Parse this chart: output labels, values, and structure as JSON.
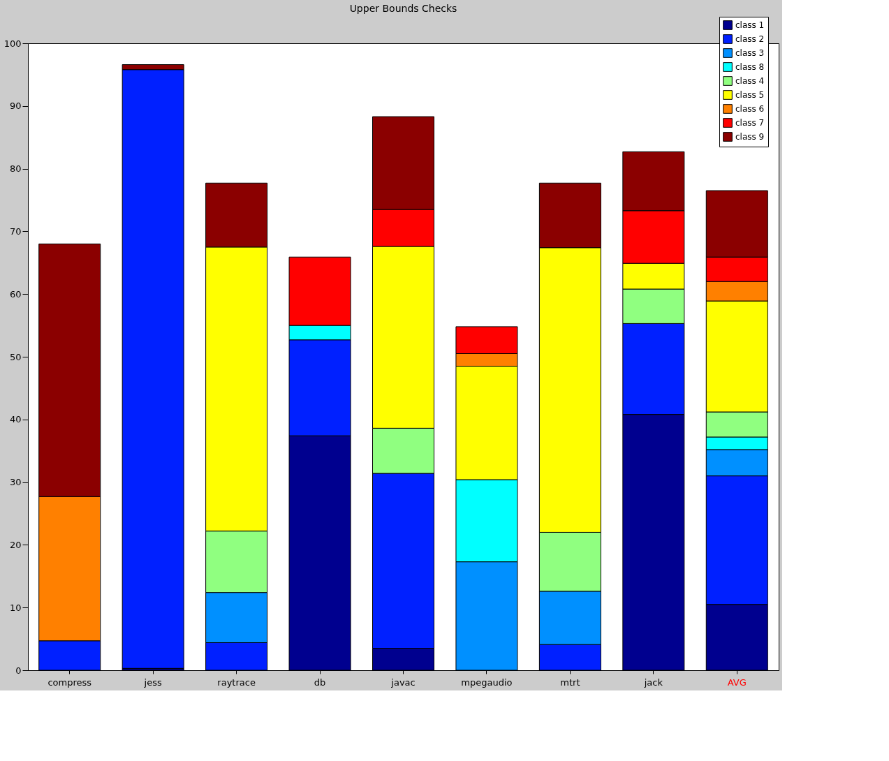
{
  "chart_data": {
    "type": "bar",
    "title": "Upper Bounds Checks",
    "stacked": true,
    "categories": [
      "compress",
      "jess",
      "raytrace",
      "db",
      "javac",
      "mpegaudio",
      "mtrt",
      "jack",
      "AVG"
    ],
    "series": [
      {
        "name": "class 1",
        "color": "#00008f",
        "values": [
          null,
          0.3,
          null,
          37.4,
          3.5,
          null,
          null,
          40.8,
          10.5
        ]
      },
      {
        "name": "class 2",
        "color": "#0020ff",
        "values": [
          4.7,
          95.5,
          4.4,
          15.3,
          27.9,
          null,
          4.1,
          14.5,
          20.5
        ]
      },
      {
        "name": "class 3",
        "color": "#0090ff",
        "values": [
          null,
          null,
          8.0,
          null,
          null,
          17.3,
          8.5,
          null,
          4.2
        ]
      },
      {
        "name": "class 8",
        "color": "#00ffff",
        "values": [
          null,
          null,
          null,
          2.3,
          null,
          13.1,
          null,
          null,
          2.0
        ]
      },
      {
        "name": "class 4",
        "color": "#90ff80",
        "values": [
          null,
          null,
          9.8,
          null,
          7.2,
          null,
          9.4,
          5.5,
          4.0
        ]
      },
      {
        "name": "class 5",
        "color": "#ffff00",
        "values": [
          null,
          null,
          45.3,
          null,
          29.0,
          18.1,
          45.4,
          4.1,
          17.7
        ]
      },
      {
        "name": "class 6",
        "color": "#ff8000",
        "values": [
          23.0,
          null,
          null,
          null,
          null,
          2.0,
          null,
          null,
          3.1
        ]
      },
      {
        "name": "class 7",
        "color": "#ff0000",
        "values": [
          null,
          null,
          null,
          10.9,
          5.9,
          4.3,
          null,
          8.4,
          3.9
        ]
      },
      {
        "name": "class 9",
        "color": "#8b0000",
        "values": [
          40.3,
          0.8,
          10.2,
          null,
          14.8,
          null,
          10.3,
          9.4,
          10.6
        ]
      }
    ],
    "ylim": [
      0,
      100
    ],
    "yticks": [
      0,
      10,
      20,
      30,
      40,
      50,
      60,
      70,
      80,
      90,
      100
    ],
    "grid": false,
    "legend": "top right"
  }
}
